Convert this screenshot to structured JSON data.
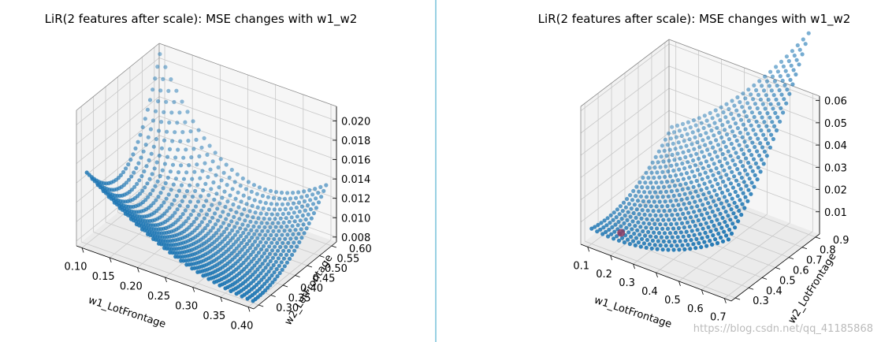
{
  "divider_color": "#33a3c7",
  "watermark": "https://blog.csdn.net/qq_41185868",
  "chart_data": [
    {
      "type": "scatter",
      "projection": "3d",
      "title": "LiR(2 features after scale): MSE changes with w1_w2",
      "xlabel": "w1_LotFrontage",
      "ylabel": "w2_LotFrontage",
      "zlabel": "",
      "xlim": [
        0.09,
        0.41
      ],
      "ylim": [
        0.28,
        0.62
      ],
      "zlim": [
        0.0075,
        0.0215
      ],
      "xticks": [
        "0.10",
        "0.15",
        "0.20",
        "0.25",
        "0.30",
        "0.35",
        "0.40"
      ],
      "yticks": [
        "0.30",
        "0.35",
        "0.40",
        "0.45",
        "0.50",
        "0.55",
        "0.60"
      ],
      "zticks": [
        "0.008",
        "0.010",
        "0.012",
        "0.014",
        "0.016",
        "0.018",
        "0.020"
      ],
      "grid": true,
      "marker_color": "#1f77b4",
      "surface": {
        "w1_range": [
          0.1,
          0.4
        ],
        "w2_range": [
          0.3,
          0.6
        ],
        "grid_points": 31,
        "mse_min": 0.0077,
        "mse_at_w1_0.10_w2_0.60": 0.021,
        "mse_at_w1_0.40_w2_0.30": 0.0102,
        "mse_at_w1_0.10_w2_0.30": 0.0101,
        "mse_at_w1_0.40_w2_0.60": 0.0098
      }
    },
    {
      "type": "scatter",
      "projection": "3d",
      "title": "LiR(2 features after scale): MSE changes with w1_w2",
      "xlabel": "w1_LotFrontage",
      "ylabel": "w2_LotFrontage",
      "zlabel": "",
      "xlim": [
        0.07,
        0.73
      ],
      "ylim": [
        0.27,
        0.93
      ],
      "zlim": [
        0.0,
        0.062
      ],
      "xticks": [
        "0.1",
        "0.2",
        "0.3",
        "0.4",
        "0.5",
        "0.6",
        "0.7"
      ],
      "yticks": [
        "0.3",
        "0.4",
        "0.5",
        "0.6",
        "0.7",
        "0.8",
        "0.9"
      ],
      "zticks": [
        "0.01",
        "0.02",
        "0.03",
        "0.04",
        "0.05",
        "0.06"
      ],
      "grid": true,
      "marker_color": "#1f77b4",
      "highlight_color": "#8b3a62",
      "surface": {
        "w1_range": [
          0.1,
          0.7
        ],
        "w2_range": [
          0.3,
          0.9
        ],
        "grid_points": 26,
        "mse_min": 0.006,
        "mse_at_w1_0.70_w2_0.90": 0.058,
        "mse_at_w1_0.10_w2_0.30": 0.0085
      },
      "highlight_point": {
        "w1": 0.2,
        "w2": 0.35,
        "mse": 0.0065
      }
    }
  ]
}
